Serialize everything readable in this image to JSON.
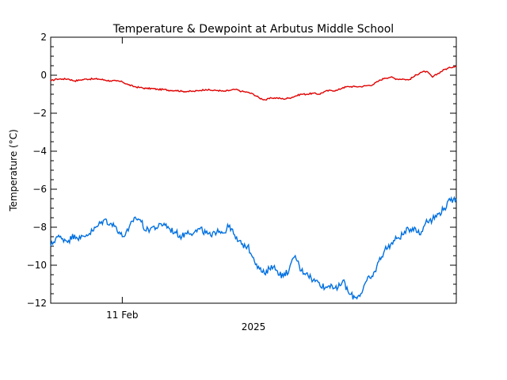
{
  "chart_data": {
    "type": "line",
    "title": "Temperature & Dewpoint at Arbutus Middle School",
    "ylabel": "Temperature (°C)",
    "xlabel": "2025",
    "x_tick_labels": [
      "11 Feb"
    ],
    "ylim": [
      -12,
      2
    ],
    "y_ticks": [
      -12,
      -10,
      -8,
      -6,
      -4,
      -2,
      0,
      2
    ],
    "x_range_hours": [
      0,
      68
    ],
    "x_tick_positions_hours": [
      12
    ],
    "grid": false,
    "series": [
      {
        "color": "#e00000",
        "x": [
          0,
          1,
          2,
          3,
          4,
          5,
          6,
          7,
          8,
          9,
          10,
          11,
          12,
          13,
          14,
          15,
          16,
          17,
          18,
          19,
          20,
          21,
          22,
          23,
          24,
          25,
          26,
          27,
          28,
          29,
          30,
          31,
          32,
          33,
          34,
          35,
          36,
          37,
          38,
          39,
          40,
          41,
          42,
          43,
          44,
          45,
          46,
          47,
          48,
          49,
          50,
          51,
          52,
          53,
          54,
          55,
          56,
          57,
          58,
          59,
          60,
          61,
          62,
          63,
          64,
          65,
          66,
          67,
          68
        ],
        "values": [
          -0.3,
          -0.2,
          -0.2,
          -0.2,
          -0.3,
          -0.25,
          -0.2,
          -0.2,
          -0.2,
          -0.25,
          -0.3,
          -0.3,
          -0.35,
          -0.5,
          -0.6,
          -0.65,
          -0.7,
          -0.7,
          -0.75,
          -0.75,
          -0.8,
          -0.8,
          -0.85,
          -0.85,
          -0.85,
          -0.8,
          -0.75,
          -0.8,
          -0.8,
          -0.85,
          -0.8,
          -0.75,
          -0.85,
          -0.9,
          -1.0,
          -1.2,
          -1.3,
          -1.2,
          -1.2,
          -1.25,
          -1.2,
          -1.1,
          -1.0,
          -1.0,
          -0.95,
          -1.0,
          -0.85,
          -0.8,
          -0.8,
          -0.65,
          -0.6,
          -0.6,
          -0.6,
          -0.55,
          -0.5,
          -0.3,
          -0.15,
          -0.1,
          -0.2,
          -0.2,
          -0.25,
          -0.05,
          0.15,
          0.2,
          -0.1,
          0.1,
          0.3,
          0.4,
          0.5
        ]
      },
      {
        "color": "#0070e0",
        "x": [
          0,
          1,
          2,
          3,
          4,
          5,
          6,
          7,
          8,
          9,
          10,
          11,
          12,
          13,
          14,
          15,
          16,
          17,
          18,
          19,
          20,
          21,
          22,
          23,
          24,
          25,
          26,
          27,
          28,
          29,
          30,
          31,
          32,
          33,
          34,
          35,
          36,
          37,
          38,
          39,
          40,
          41,
          42,
          43,
          44,
          45,
          46,
          47,
          48,
          49,
          50,
          51,
          52,
          53,
          54,
          55,
          56,
          57,
          58,
          59,
          60,
          61,
          62,
          63,
          64,
          65,
          66,
          67,
          68
        ],
        "values": [
          -9.0,
          -8.5,
          -8.6,
          -8.7,
          -8.4,
          -8.6,
          -8.4,
          -8.2,
          -7.9,
          -7.6,
          -7.8,
          -8.0,
          -8.5,
          -8.2,
          -7.5,
          -7.6,
          -8.2,
          -8.0,
          -8.0,
          -7.8,
          -8.1,
          -8.3,
          -8.5,
          -8.2,
          -8.3,
          -8.1,
          -8.3,
          -8.5,
          -8.1,
          -8.3,
          -7.9,
          -8.6,
          -8.9,
          -9.0,
          -9.6,
          -10.2,
          -10.5,
          -10.0,
          -10.3,
          -10.6,
          -10.2,
          -9.5,
          -10.3,
          -10.4,
          -10.8,
          -10.9,
          -11.2,
          -11.0,
          -11.3,
          -10.8,
          -11.5,
          -11.7,
          -11.5,
          -10.8,
          -10.6,
          -9.8,
          -9.2,
          -8.9,
          -8.6,
          -8.4,
          -8.1,
          -8.0,
          -8.4,
          -7.6,
          -7.6,
          -7.3,
          -7.0,
          -6.6,
          -6.5
        ]
      }
    ]
  }
}
